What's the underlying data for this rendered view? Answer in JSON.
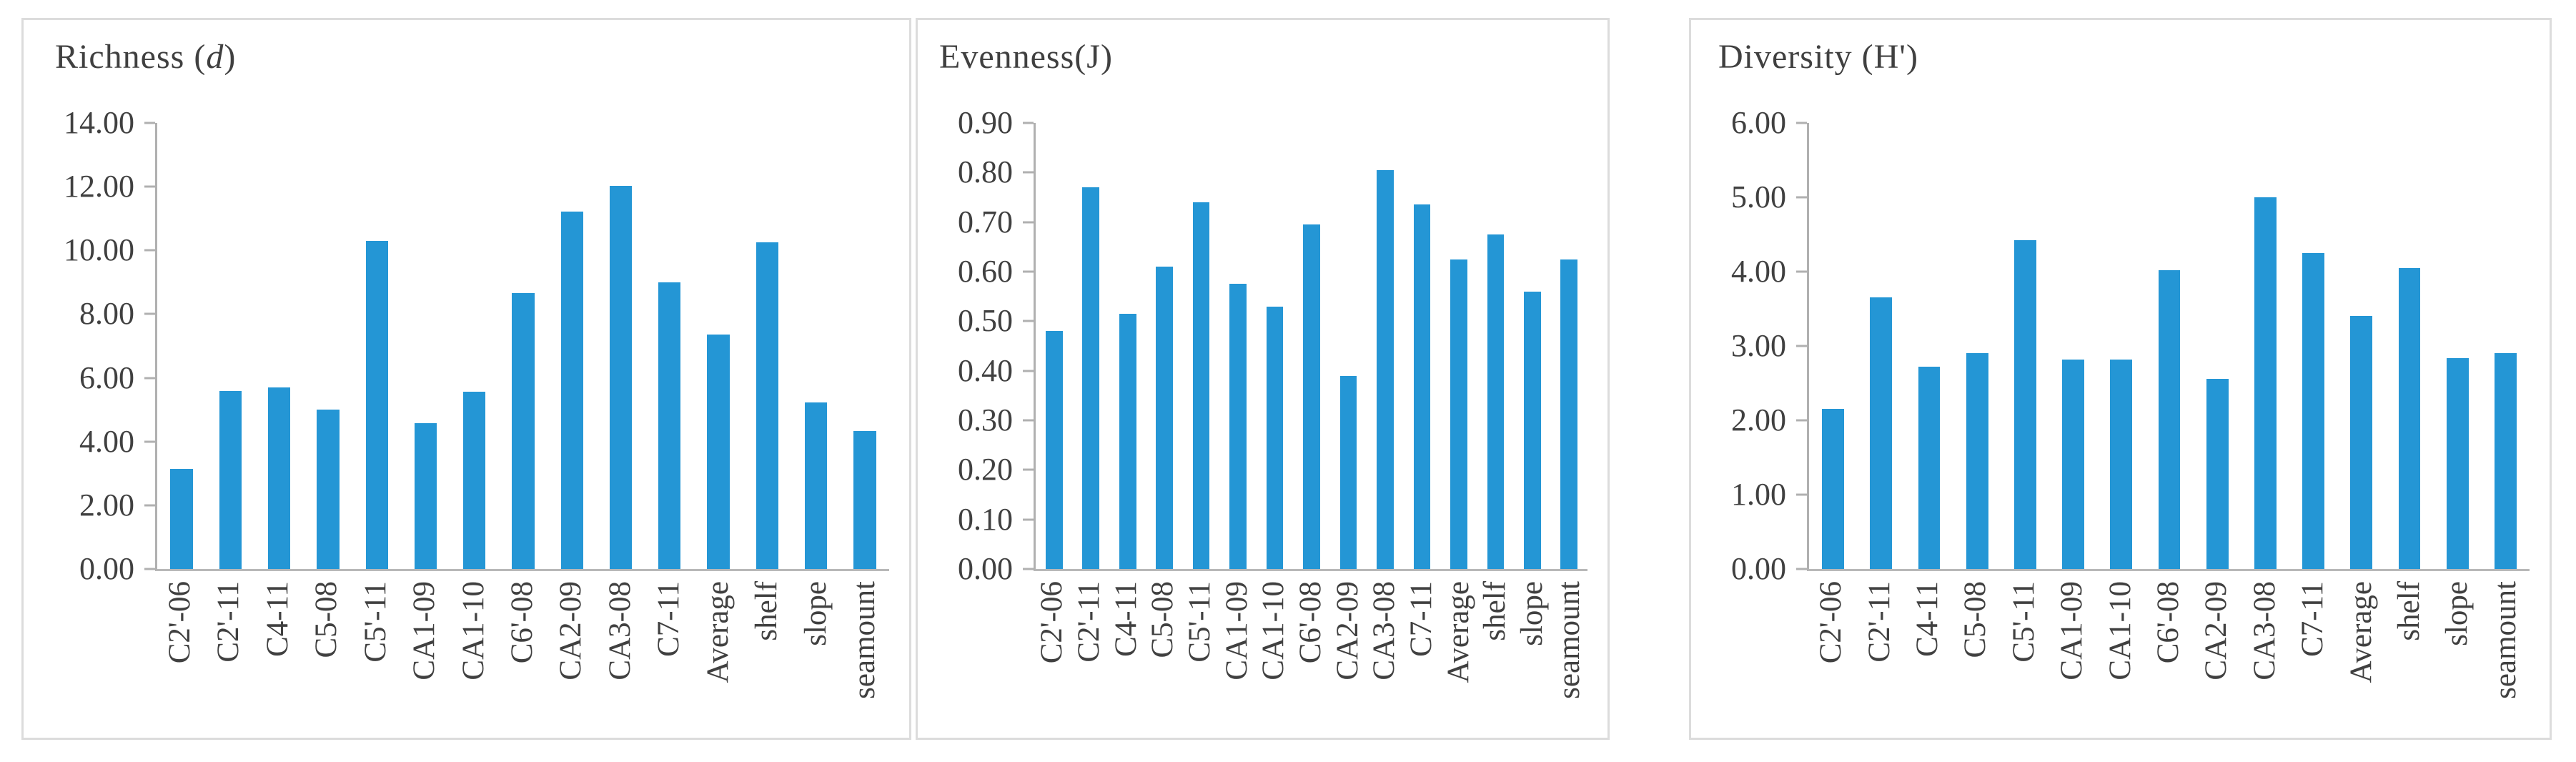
{
  "style": {
    "bar_color": "#2496D5",
    "axis_color": "#B0B0B0",
    "text_color": "#404040",
    "panel_border_color": "#DCDCDC",
    "background": "#FFFFFF"
  },
  "chart_data": [
    {
      "type": "bar",
      "title": "Richness (d)",
      "title_parts": {
        "pre": "Richness (",
        "italic": "d",
        "post": ")"
      },
      "categories": [
        "C2'-06",
        "C2'-11",
        "C4-11",
        "C5-08",
        "C5'-11",
        "CA1-09",
        "CA1-10",
        "C6'-08",
        "CA2-09",
        "CA3-08",
        "C7-11",
        "Average",
        "shelf",
        "slope",
        "seamount"
      ],
      "values": [
        3.15,
        5.58,
        5.69,
        5.0,
        10.3,
        4.58,
        5.57,
        8.67,
        11.22,
        12.02,
        9.0,
        7.35,
        10.26,
        5.23,
        4.32
      ],
      "xlabel": "",
      "ylabel": "",
      "ylim": [
        0,
        14
      ],
      "ytick_step": 2,
      "ytick_labels": [
        "0.00",
        "2.00",
        "4.00",
        "6.00",
        "8.00",
        "10.00",
        "12.00",
        "14.00"
      ],
      "grid": false,
      "legend": "none"
    },
    {
      "type": "bar",
      "title": "Evenness(J)",
      "title_parts": {
        "pre": "Evenness(J)",
        "italic": "",
        "post": ""
      },
      "categories": [
        "C2'-06",
        "C2'-11",
        "C4-11",
        "C5-08",
        "C5'-11",
        "CA1-09",
        "CA1-10",
        "C6'-08",
        "CA2-09",
        "CA3-08",
        "C7-11",
        "Average",
        "shelf",
        "slope",
        "seamount"
      ],
      "values": [
        0.48,
        0.77,
        0.515,
        0.61,
        0.74,
        0.575,
        0.53,
        0.695,
        0.39,
        0.805,
        0.735,
        0.625,
        0.675,
        0.56,
        0.625
      ],
      "xlabel": "",
      "ylabel": "",
      "ylim": [
        0,
        0.9
      ],
      "ytick_step": 0.1,
      "ytick_labels": [
        "0.00",
        "0.10",
        "0.20",
        "0.30",
        "0.40",
        "0.50",
        "0.60",
        "0.70",
        "0.80",
        "0.90"
      ],
      "grid": false,
      "legend": "none"
    },
    {
      "type": "bar",
      "title": "Diversity (H')",
      "title_parts": {
        "pre": "Diversity (H')",
        "italic": "",
        "post": ""
      },
      "categories": [
        "C2'-06",
        "C2'-11",
        "C4-11",
        "C5-08",
        "C5'-11",
        "CA1-09",
        "CA1-10",
        "C6'-08",
        "CA2-09",
        "CA3-08",
        "C7-11",
        "Average",
        "shelf",
        "slope",
        "seamount"
      ],
      "values": [
        2.15,
        3.65,
        2.72,
        2.9,
        4.42,
        2.82,
        2.82,
        4.02,
        2.56,
        5.0,
        4.25,
        3.4,
        4.05,
        2.84,
        2.9
      ],
      "xlabel": "",
      "ylabel": "",
      "ylim": [
        0,
        6
      ],
      "ytick_step": 1,
      "ytick_labels": [
        "0.00",
        "1.00",
        "2.00",
        "3.00",
        "4.00",
        "5.00",
        "6.00"
      ],
      "grid": false,
      "legend": "none"
    }
  ]
}
